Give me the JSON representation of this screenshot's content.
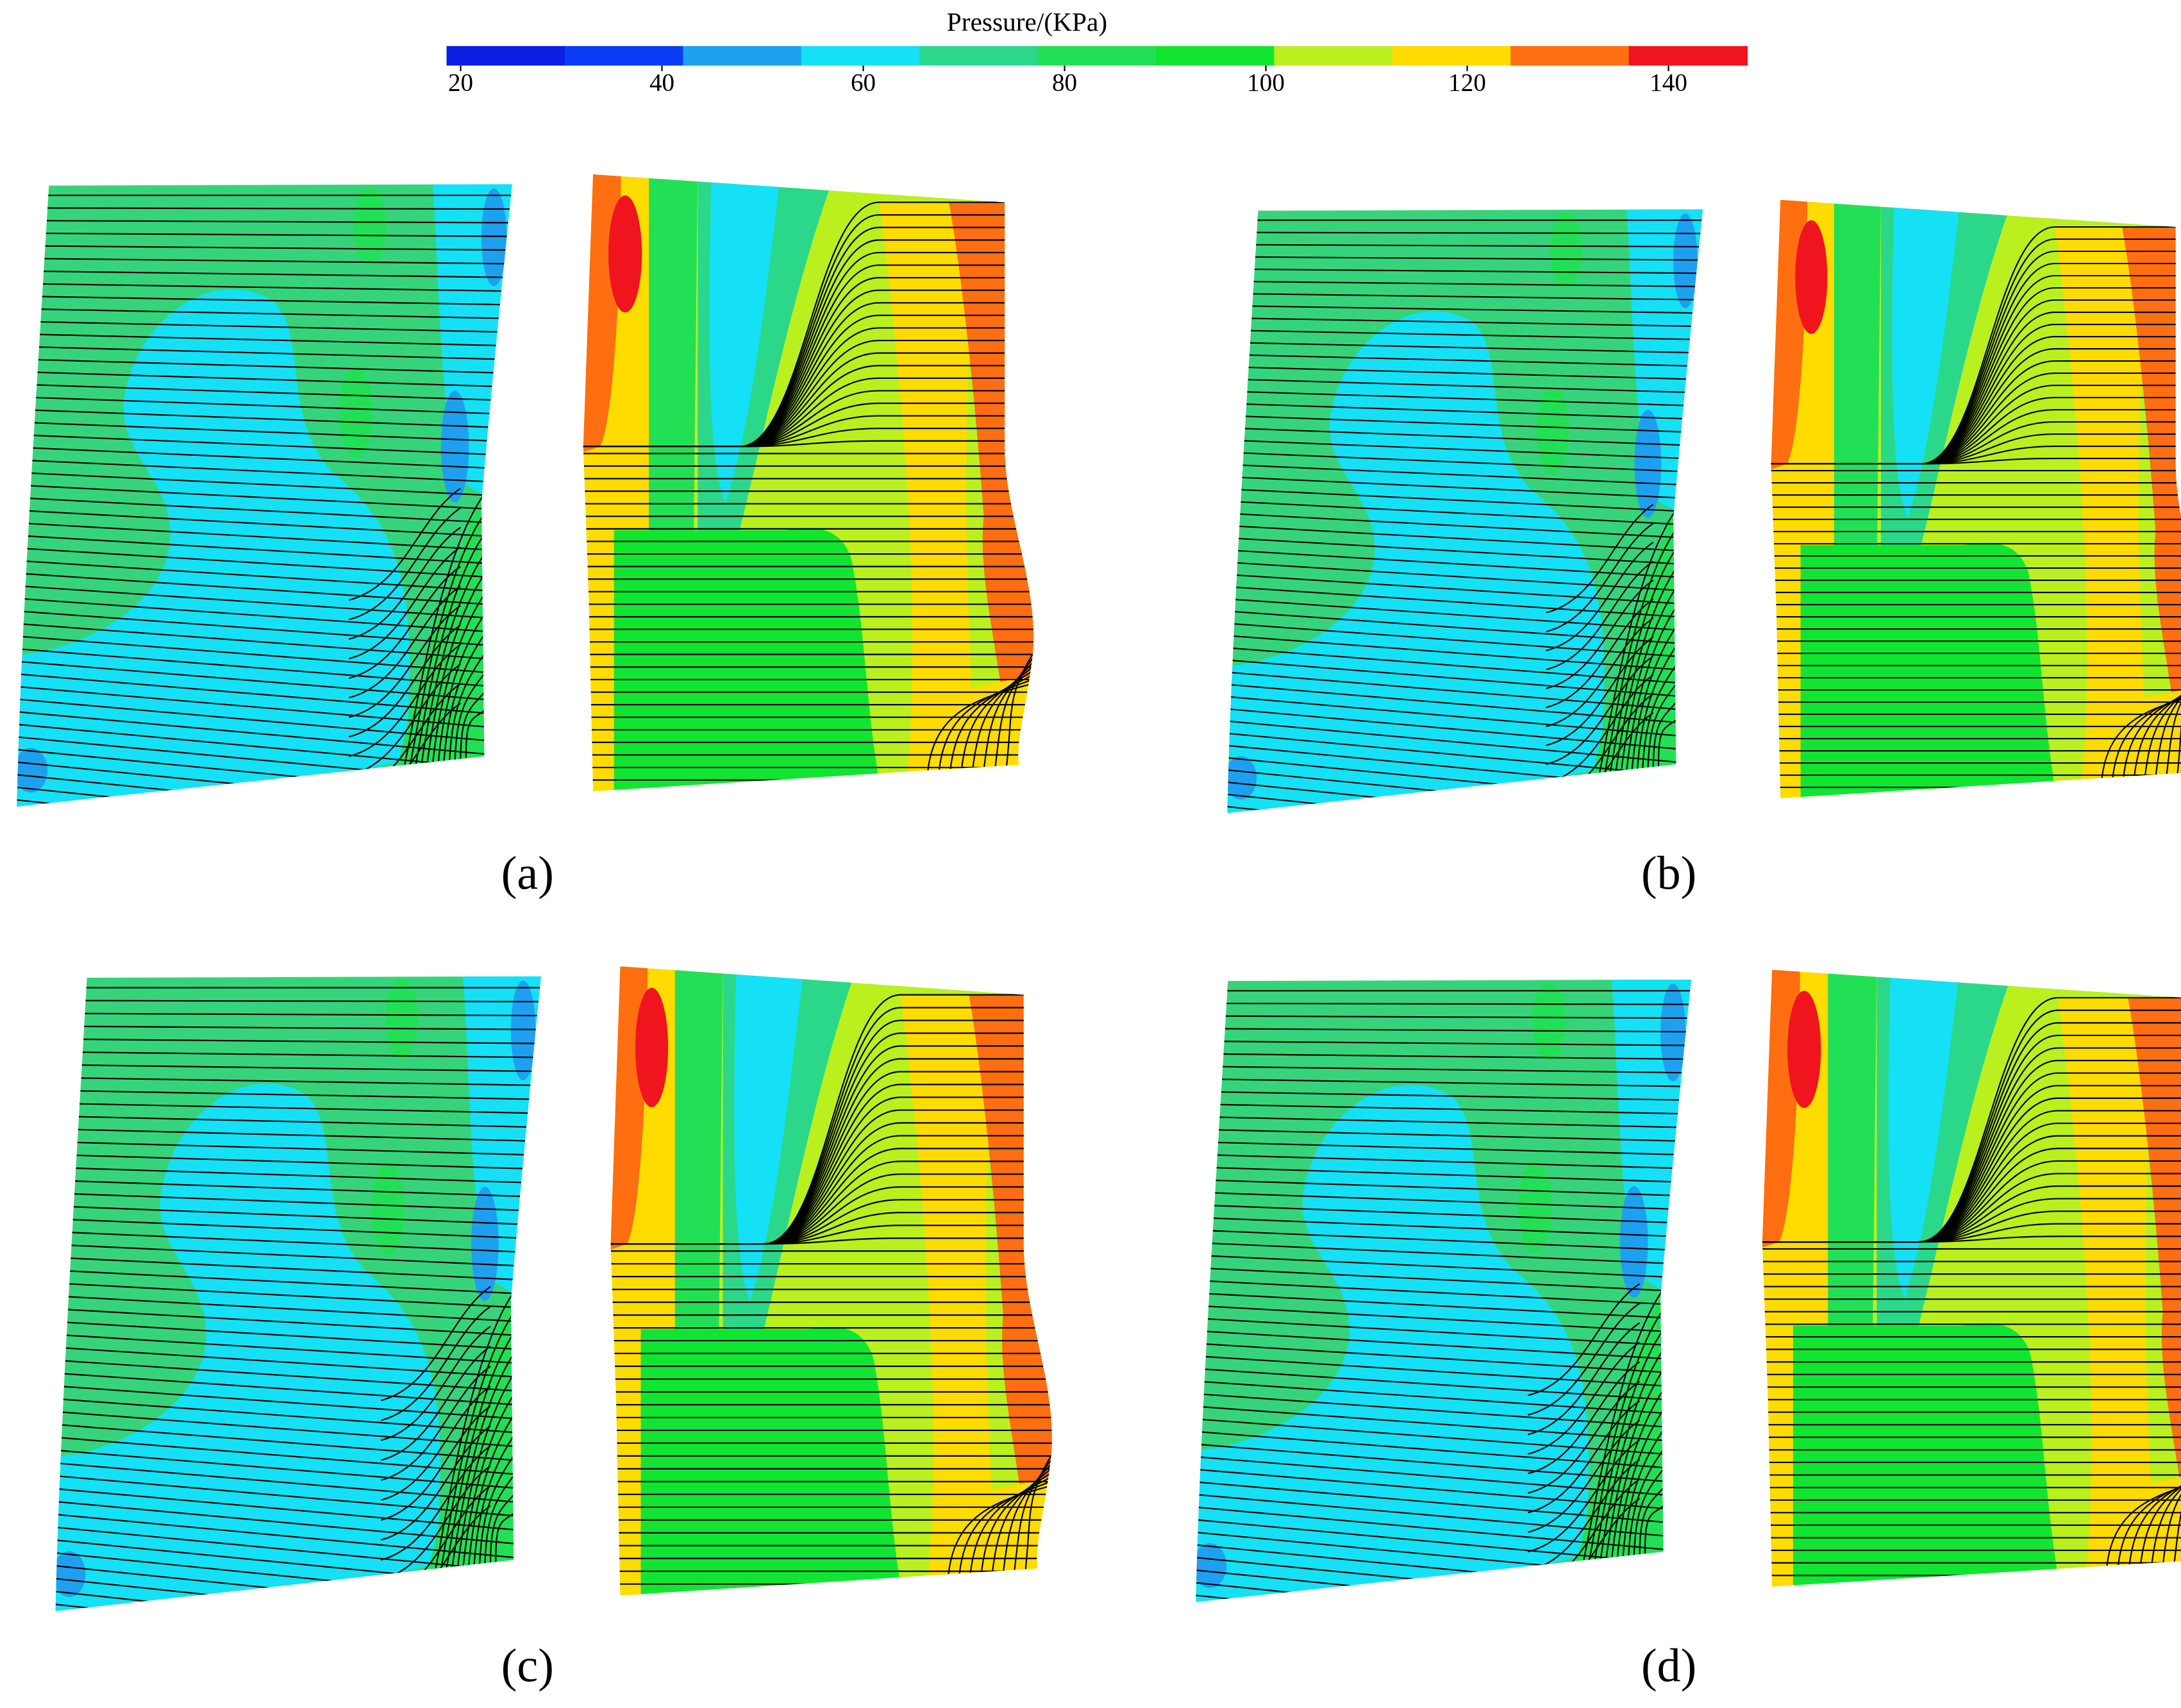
{
  "colorbar": {
    "title": "Pressure/(KPa)",
    "ticks": [
      20,
      40,
      60,
      80,
      100,
      120,
      140
    ],
    "range": [
      18.6,
      147.8
    ],
    "colors": [
      "#0a1ee6",
      "#0a3cf5",
      "#1ea0f0",
      "#14e1f5",
      "#2bd88a",
      "#22e055",
      "#10e632",
      "#b9f01e",
      "#ffdc00",
      "#ff6e10",
      "#f0141e"
    ]
  },
  "panels": [
    {
      "label": "(a)"
    },
    {
      "label": "(b)"
    },
    {
      "label": "(c)"
    },
    {
      "label": "(d)"
    }
  ]
}
